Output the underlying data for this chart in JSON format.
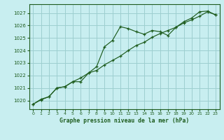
{
  "title": "Graphe pression niveau de la mer (hPa)",
  "background_color": "#c8eef0",
  "grid_color": "#9dcfcf",
  "line_color": "#1e5c1e",
  "xlim": [
    -0.5,
    23.5
  ],
  "ylim": [
    1019.3,
    1027.7
  ],
  "yticks": [
    1020,
    1021,
    1022,
    1023,
    1024,
    1025,
    1026,
    1027
  ],
  "xticks": [
    0,
    1,
    2,
    3,
    4,
    5,
    6,
    7,
    8,
    9,
    10,
    11,
    12,
    13,
    14,
    15,
    16,
    17,
    18,
    19,
    20,
    21,
    22,
    23
  ],
  "line1_x": [
    0,
    1,
    2,
    3,
    4,
    5,
    6,
    7,
    8,
    9,
    10,
    11,
    12,
    13,
    14,
    15,
    16,
    17,
    18,
    19,
    20,
    21,
    22,
    23
  ],
  "line1_y": [
    1019.7,
    1020.1,
    1020.3,
    1021.0,
    1021.1,
    1021.5,
    1021.5,
    1022.2,
    1022.7,
    1024.3,
    1024.8,
    1025.9,
    1025.75,
    1025.5,
    1025.3,
    1025.6,
    1025.5,
    1025.2,
    1025.85,
    1026.3,
    1026.6,
    1027.1,
    1027.15,
    1026.85
  ],
  "line2_x": [
    0,
    1,
    2,
    3,
    4,
    5,
    6,
    7,
    8,
    9,
    10,
    11,
    12,
    13,
    14,
    15,
    16,
    17,
    18,
    19,
    20,
    21,
    22,
    23
  ],
  "line2_y": [
    1019.7,
    1020.05,
    1020.3,
    1021.0,
    1021.1,
    1021.5,
    1021.8,
    1022.2,
    1022.4,
    1022.85,
    1023.2,
    1023.55,
    1024.0,
    1024.4,
    1024.65,
    1025.05,
    1025.35,
    1025.6,
    1025.85,
    1026.2,
    1026.45,
    1026.75,
    1027.1,
    1026.85
  ]
}
